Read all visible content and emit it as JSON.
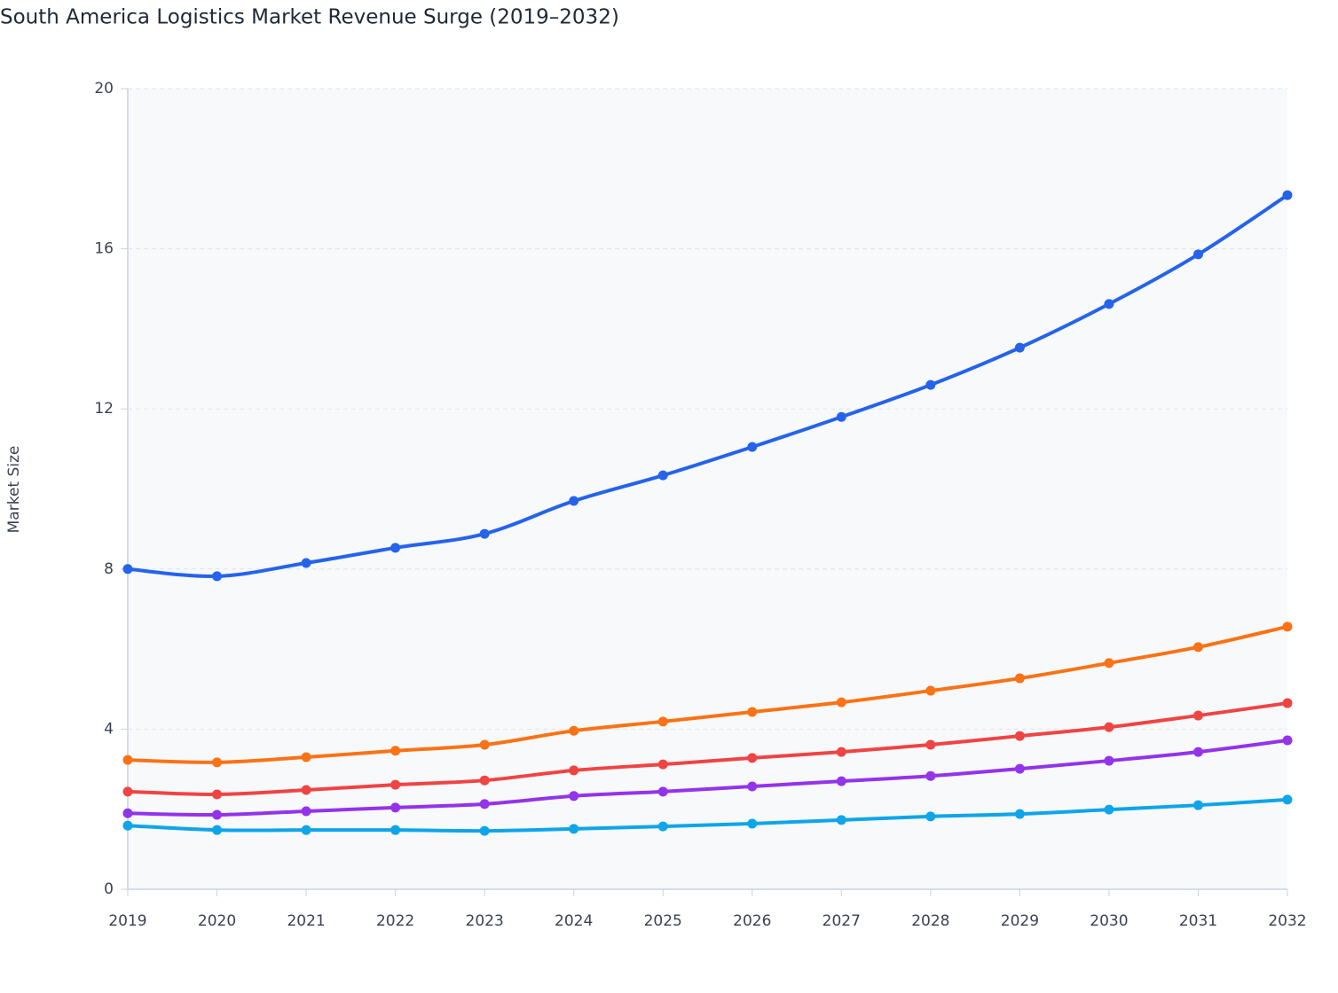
{
  "chart_data": {
    "type": "line",
    "title": "South America Logistics Market Revenue Surge (2019–2032)",
    "y_label": "Market Size",
    "x": [
      2019,
      2020,
      2021,
      2022,
      2023,
      2024,
      2025,
      2026,
      2027,
      2028,
      2029,
      2030,
      2031,
      2032
    ],
    "series": [
      {
        "color": "#2563eb",
        "values": [
          8.0,
          7.82,
          8.15,
          8.53,
          8.88,
          9.7,
          10.34,
          11.05,
          11.8,
          12.6,
          13.53,
          14.62,
          15.86,
          17.34
        ]
      },
      {
        "color": "#f97316",
        "values": [
          3.23,
          3.17,
          3.3,
          3.46,
          3.61,
          3.96,
          4.19,
          4.43,
          4.67,
          4.96,
          5.27,
          5.65,
          6.05,
          6.56
        ]
      },
      {
        "color": "#ef4444",
        "values": [
          2.44,
          2.37,
          2.48,
          2.61,
          2.72,
          2.97,
          3.12,
          3.28,
          3.43,
          3.61,
          3.83,
          4.05,
          4.34,
          4.65
        ]
      },
      {
        "color": "#9333ea",
        "values": [
          1.9,
          1.86,
          1.95,
          2.04,
          2.13,
          2.33,
          2.44,
          2.57,
          2.7,
          2.83,
          3.01,
          3.21,
          3.43,
          3.72
        ]
      },
      {
        "color": "#0ea5e9",
        "values": [
          1.59,
          1.48,
          1.48,
          1.48,
          1.46,
          1.51,
          1.57,
          1.64,
          1.73,
          1.82,
          1.88,
          1.99,
          2.1,
          2.24
        ]
      }
    ],
    "xlim": [
      2019,
      2032
    ],
    "xticks": [
      2019,
      2020,
      2021,
      2022,
      2023,
      2024,
      2025,
      2026,
      2027,
      2028,
      2029,
      2030,
      2031,
      2032
    ],
    "ylim": [
      0,
      20
    ],
    "yticks": [
      0,
      4,
      8,
      12,
      16,
      20
    ],
    "grid": true
  }
}
